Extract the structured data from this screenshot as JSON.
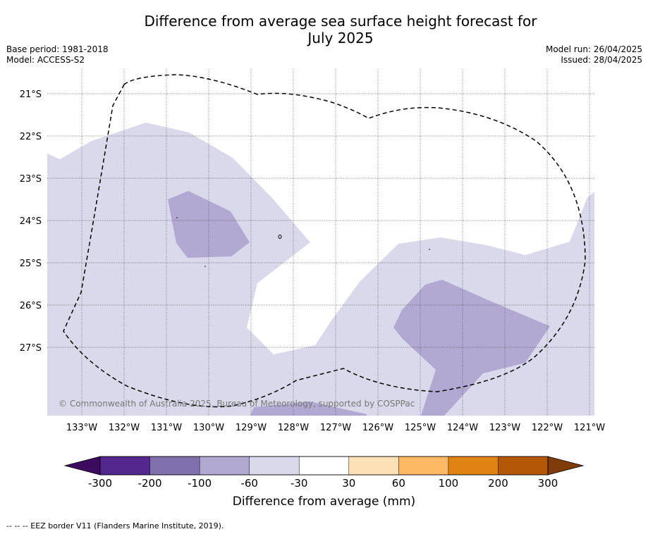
{
  "title_line1": "Difference from average sea surface height forecast for",
  "title_line2": "July 2025",
  "base_period": "Base period: 1981-2018",
  "model": "Model: ACCESS-S2",
  "model_run": "Model run: 26/04/2025",
  "issued": "Issued: 28/04/2025",
  "copyright": "© Commonwealth of Australia 2025, Bureau of Meteorology, supported by COSPPac",
  "lon_labels": [
    "133°W",
    "132°W",
    "131°W",
    "130°W",
    "129°W",
    "128°W",
    "127°W",
    "126°W",
    "125°W",
    "124°W",
    "123°W",
    "122°W",
    "121°W"
  ],
  "lat_labels": [
    "21°S",
    "22°S",
    "23°S",
    "24°S",
    "25°S",
    "26°S",
    "27°S"
  ],
  "colorbar": {
    "label": "Difference from average (mm)",
    "ticks": [
      "-300",
      "-200",
      "-100",
      "-60",
      "-30",
      "30",
      "60",
      "100",
      "200",
      "300"
    ],
    "colors": [
      "#3c0a5e",
      "#54278f",
      "#7f71ae",
      "#b1a9d2",
      "#d9d9eb",
      "#ffffff",
      "#fee0b6",
      "#fdb863",
      "#e08214",
      "#b35806",
      "#7f3b08"
    ]
  },
  "footer": "-- -- -- EEZ border V11 (Flanders Marine Institute, 2019)."
}
